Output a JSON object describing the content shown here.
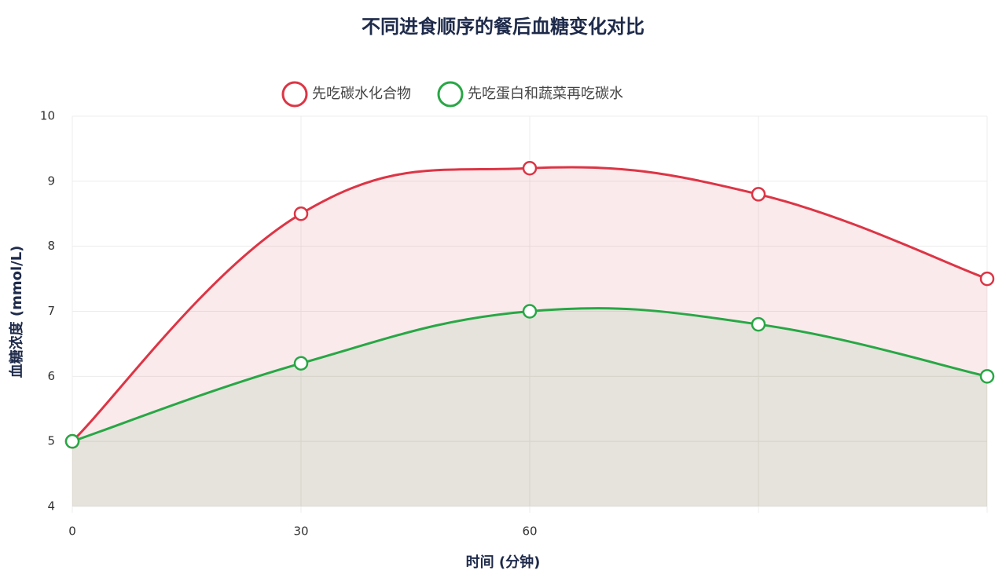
{
  "chart_data": {
    "type": "line",
    "title": "不同进食顺序的餐后血糖变化对比",
    "x_label": "时间 (分钟)",
    "y_label": "血糖浓度 (mmol/L)",
    "categories": [
      "0",
      "30",
      "60",
      null,
      null
    ],
    "series": [
      {
        "name": "先吃碳水化合物",
        "color": "#dc3545",
        "values": [
          5,
          8.5,
          9.2,
          8.8,
          7.5
        ]
      },
      {
        "name": "先吃蛋白和蔬菜再吃碳水",
        "color": "#28a745",
        "values": [
          5,
          6.2,
          7.0,
          6.8,
          6.0
        ]
      }
    ],
    "ylim": [
      4,
      10
    ],
    "yticks": [
      4,
      5,
      6,
      7,
      8,
      9,
      10
    ],
    "grid": true,
    "legend": "top",
    "fill": true
  }
}
